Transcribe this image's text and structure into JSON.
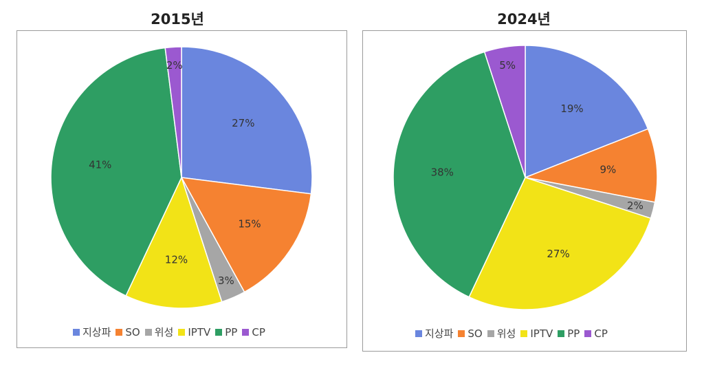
{
  "chart_data": [
    {
      "type": "pie",
      "title": "2015년",
      "categories": [
        "지상파",
        "SO",
        "위성",
        "IPTV",
        "PP",
        "CP"
      ],
      "values": [
        27,
        15,
        3,
        12,
        41,
        2
      ],
      "labels": [
        "27%",
        "15%",
        "3%",
        "12%",
        "41%",
        "2%"
      ],
      "colors": [
        "#6a86de",
        "#f58231",
        "#a6a6a6",
        "#f2e317",
        "#2e9e63",
        "#9b59d0"
      ],
      "legend_position": "bottom"
    },
    {
      "type": "pie",
      "title": "2024년",
      "categories": [
        "지상파",
        "SO",
        "위성",
        "IPTV",
        "PP",
        "CP"
      ],
      "values": [
        19,
        9,
        2,
        27,
        38,
        5
      ],
      "labels": [
        "19%",
        "9%",
        "2%",
        "27%",
        "38%",
        "5%"
      ],
      "colors": [
        "#6a86de",
        "#f58231",
        "#a6a6a6",
        "#f2e317",
        "#2e9e63",
        "#9b59d0"
      ],
      "legend_position": "bottom"
    }
  ]
}
